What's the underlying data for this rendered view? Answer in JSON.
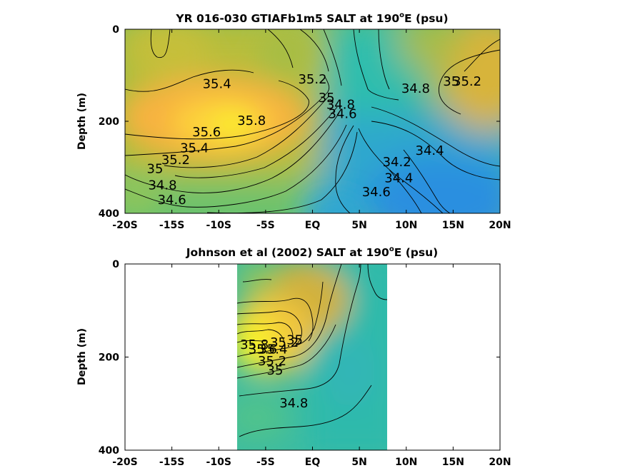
{
  "chart_data": [
    {
      "type": "heatmap",
      "title_main": "YR 016-030 GTIAFb1m5 SALT at 190",
      "title_sup": "o",
      "title_tail": "E (psu)",
      "ylabel": "Depth (m)",
      "xlabel": "",
      "x_ticks": [
        {
          "v": -20,
          "label": "-20S"
        },
        {
          "v": -15,
          "label": "-15S"
        },
        {
          "v": -10,
          "label": "-10S"
        },
        {
          "v": -5,
          "label": "-5S"
        },
        {
          "v": 0,
          "label": "EQ"
        },
        {
          "v": 5,
          "label": "5N"
        },
        {
          "v": 10,
          "label": "10N"
        },
        {
          "v": 15,
          "label": "15N"
        },
        {
          "v": 20,
          "label": "20N"
        }
      ],
      "y_ticks": [
        {
          "v": 0,
          "label": "0"
        },
        {
          "v": 200,
          "label": "200"
        },
        {
          "v": 400,
          "label": "400"
        }
      ],
      "xlim": [
        -20,
        20
      ],
      "ylim": [
        0,
        400
      ],
      "y_reversed": true,
      "data_extent": [
        -20,
        20
      ],
      "colormap": "parula",
      "color_range_psu": [
        34.0,
        36.0
      ],
      "contour_labels": [
        {
          "text": "35.4",
          "lat": -10.2,
          "depth": 120
        },
        {
          "text": "35.2",
          "lat": 0.0,
          "depth": 110
        },
        {
          "text": "35",
          "lat": 1.5,
          "depth": 150
        },
        {
          "text": "34.8",
          "lat": 3.0,
          "depth": 165
        },
        {
          "text": "34.6",
          "lat": 3.2,
          "depth": 185
        },
        {
          "text": "34.8",
          "lat": 11.0,
          "depth": 130
        },
        {
          "text": "35",
          "lat": 14.8,
          "depth": 115
        },
        {
          "text": "35.2",
          "lat": 16.5,
          "depth": 115
        },
        {
          "text": "35.8",
          "lat": -6.5,
          "depth": 200
        },
        {
          "text": "35.6",
          "lat": -11.3,
          "depth": 225
        },
        {
          "text": "35.4",
          "lat": -12.6,
          "depth": 260
        },
        {
          "text": "35.2",
          "lat": -14.6,
          "depth": 285
        },
        {
          "text": "35",
          "lat": -16.8,
          "depth": 305
        },
        {
          "text": "34.8",
          "lat": -16.0,
          "depth": 340
        },
        {
          "text": "34.6",
          "lat": -15.0,
          "depth": 372
        },
        {
          "text": "34.4",
          "lat": 12.5,
          "depth": 265
        },
        {
          "text": "34.2",
          "lat": 9.0,
          "depth": 290
        },
        {
          "text": "34.4",
          "lat": 9.2,
          "depth": 325
        },
        {
          "text": "34.6",
          "lat": 6.8,
          "depth": 355
        }
      ]
    },
    {
      "type": "heatmap",
      "title_main": "Johnson et al (2002) SALT at 190",
      "title_sup": "o",
      "title_tail": "E (psu)",
      "ylabel": "Depth (m)",
      "xlabel": "",
      "x_ticks": [
        {
          "v": -20,
          "label": "-20S"
        },
        {
          "v": -15,
          "label": "-15S"
        },
        {
          "v": -10,
          "label": "-10S"
        },
        {
          "v": -5,
          "label": "-5S"
        },
        {
          "v": 0,
          "label": "EQ"
        },
        {
          "v": 5,
          "label": "5N"
        },
        {
          "v": 10,
          "label": "10N"
        },
        {
          "v": 15,
          "label": "15N"
        },
        {
          "v": 20,
          "label": "20N"
        }
      ],
      "y_ticks": [
        {
          "v": 0,
          "label": "0"
        },
        {
          "v": 200,
          "label": "200"
        },
        {
          "v": 400,
          "label": "400"
        }
      ],
      "xlim": [
        -20,
        20
      ],
      "ylim": [
        0,
        400
      ],
      "y_reversed": true,
      "data_extent": [
        -8,
        8
      ],
      "colormap": "parula",
      "color_range_psu": [
        34.0,
        36.0
      ],
      "contour_labels": [
        {
          "text": "35",
          "lat": -1.9,
          "depth": 165
        },
        {
          "text": "35.2",
          "lat": -3.0,
          "depth": 170
        },
        {
          "text": "35.4",
          "lat": -4.2,
          "depth": 185
        },
        {
          "text": "35.6",
          "lat": -5.3,
          "depth": 185
        },
        {
          "text": "35.8",
          "lat": -6.2,
          "depth": 175
        },
        {
          "text": "35.2",
          "lat": -4.3,
          "depth": 210
        },
        {
          "text": "35",
          "lat": -4.0,
          "depth": 230
        },
        {
          "text": "34.8",
          "lat": -2.0,
          "depth": 300
        }
      ]
    }
  ]
}
